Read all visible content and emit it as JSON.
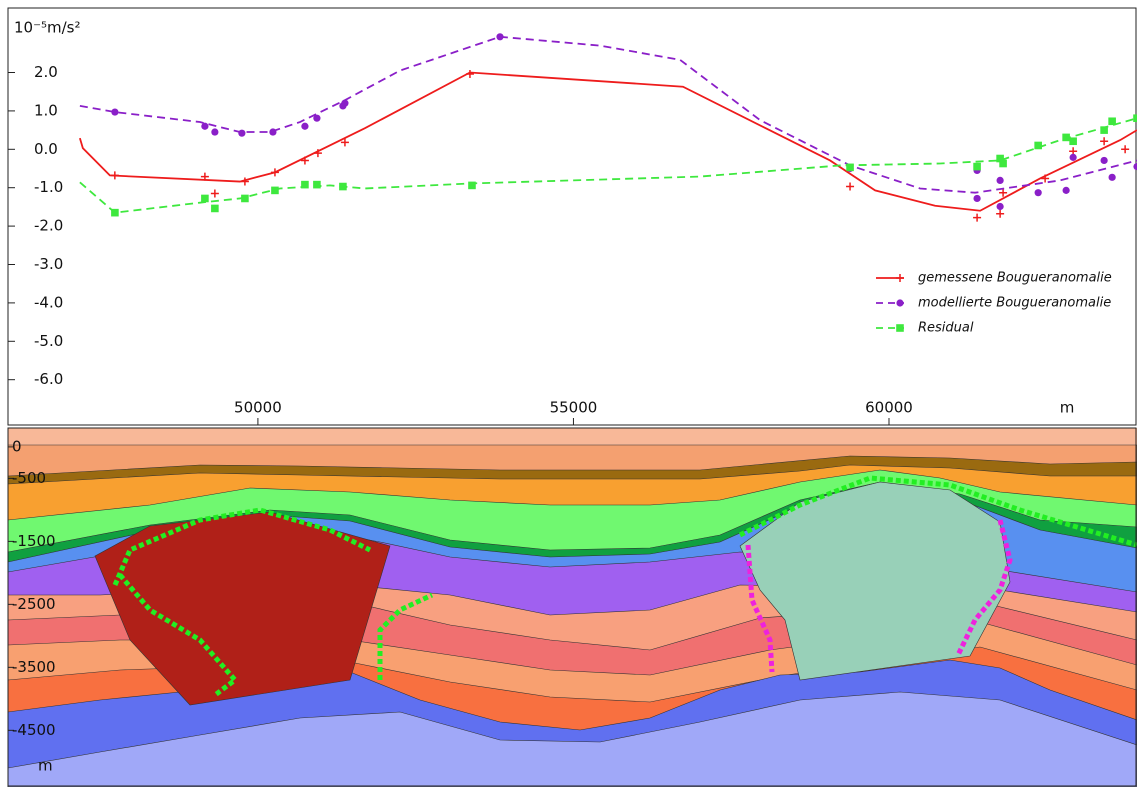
{
  "chart_data": [
    {
      "type": "line",
      "y_label": "10⁻⁵m/s²",
      "x_unit": "m",
      "xlim": [
        46040,
        63930
      ],
      "ylim": [
        -7.18,
        3.68
      ],
      "xticks": [
        50000,
        55000,
        60000
      ],
      "yticks": [
        {
          "value": 2,
          "label": "2.0"
        },
        {
          "value": 1,
          "label": "1.0"
        },
        {
          "value": 0,
          "label": "0.0"
        },
        {
          "value": -1,
          "label": "-1.0"
        },
        {
          "value": -2,
          "label": "-2.0"
        },
        {
          "value": -3,
          "label": "-3.0"
        },
        {
          "value": -4,
          "label": "-4.0"
        },
        {
          "value": -5,
          "label": "-5.0"
        },
        {
          "value": -6,
          "label": "-6.0"
        }
      ],
      "legend": "lower right",
      "series": [
        {
          "name": "gemessene Bougueranomalie",
          "color": "#ee1c1c",
          "dash": false,
          "marker": "plus",
          "x": [
            47179,
            47226,
            47654,
            49715,
            50270,
            51696,
            53360,
            56736,
            59066,
            59780,
            60731,
            61444,
            62395,
            63663,
            63930
          ],
          "values": [
            0.29,
            0.03,
            -0.68,
            -0.84,
            -0.6,
            0.55,
            2.0,
            1.63,
            -0.29,
            -1.07,
            -1.47,
            -1.6,
            -0.76,
            0.24,
            0.5
          ],
          "marker_x": [
            47733,
            49160,
            49318,
            49794,
            50270,
            50745,
            50951,
            51379,
            53360,
            59383,
            61396,
            61761,
            61808,
            62474,
            62918,
            63409,
            63742
          ],
          "marker_values": [
            -0.68,
            -0.71,
            -1.15,
            -0.84,
            -0.6,
            -0.29,
            -0.1,
            0.18,
            1.96,
            -0.97,
            -1.78,
            -1.68,
            -1.13,
            -0.76,
            -0.05,
            0.21,
            0.0
          ]
        },
        {
          "name": "modellierte Bougueranomalie",
          "color": "#8a1fc8",
          "dash": true,
          "marker": "circle",
          "x": [
            47179,
            47734,
            49081,
            49715,
            50191,
            50666,
            51379,
            52251,
            53836,
            55421,
            56689,
            57957,
            59383,
            60493,
            61365,
            62712,
            63930
          ],
          "values": [
            1.13,
            0.97,
            0.71,
            0.45,
            0.45,
            0.71,
            1.28,
            2.05,
            2.93,
            2.7,
            2.33,
            0.76,
            -0.42,
            -1.02,
            -1.13,
            -0.81,
            -0.29
          ],
          "marker_x": [
            47734,
            49160,
            49318,
            49746,
            50238,
            50745,
            50935,
            51347,
            51379,
            53836,
            59383,
            61396,
            61396,
            61761,
            61761,
            62364,
            62807,
            62918,
            63409,
            63536,
            63930
          ],
          "marker_values": [
            0.97,
            0.6,
            0.45,
            0.42,
            0.45,
            0.6,
            0.81,
            1.13,
            1.2,
            2.93,
            -0.5,
            -1.28,
            -0.55,
            -0.81,
            -1.49,
            -1.13,
            -1.07,
            -0.21,
            -0.29,
            -0.73,
            -0.45
          ]
        },
        {
          "name": "Residual",
          "color": "#3ee83e",
          "dash": true,
          "marker": "square",
          "x": [
            47179,
            47734,
            49081,
            49715,
            50349,
            51141,
            51696,
            53360,
            57005,
            59225,
            60810,
            61761,
            62712,
            63930
          ],
          "values": [
            -0.86,
            -1.65,
            -1.39,
            -1.28,
            -1.02,
            -0.94,
            -1.02,
            -0.89,
            -0.71,
            -0.42,
            -0.37,
            -0.29,
            0.24,
            0.81
          ],
          "marker_x": [
            47734,
            49160,
            49318,
            49794,
            50270,
            50745,
            50935,
            51347,
            53392,
            59383,
            61396,
            61761,
            61808,
            62364,
            62807,
            62918,
            63409,
            63536,
            63930
          ],
          "marker_values": [
            -1.65,
            -1.28,
            -1.54,
            -1.28,
            -1.07,
            -0.92,
            -0.92,
            -0.97,
            -0.94,
            -0.47,
            -0.45,
            -0.24,
            -0.37,
            0.1,
            0.31,
            0.21,
            0.5,
            0.73,
            0.81
          ]
        }
      ]
    },
    {
      "type": "section",
      "y_unit": "m",
      "ylim": [
        -5400,
        300
      ],
      "yticks": [
        0,
        -500,
        -1500,
        -2500,
        -3500,
        -4500
      ]
    }
  ]
}
